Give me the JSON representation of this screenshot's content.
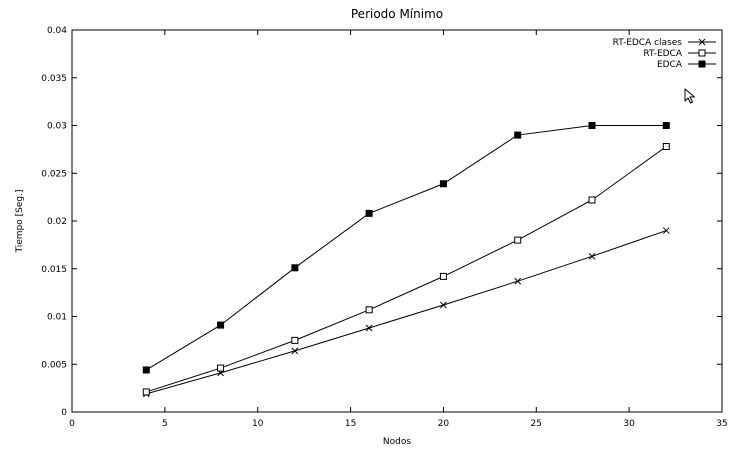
{
  "chart_data": {
    "type": "line",
    "title": "Periodo Mínimo",
    "xlabel": "Nodos",
    "ylabel": "Tiempo [Seg.]",
    "xlim": [
      0,
      35
    ],
    "ylim": [
      0,
      0.04
    ],
    "x_ticks": [
      "0",
      "5",
      "10",
      "15",
      "20",
      "25",
      "30",
      "35"
    ],
    "y_ticks": [
      "0",
      "0.005",
      "0.01",
      "0.015",
      "0.02",
      "0.025",
      "0.03",
      "0.035",
      "0.04"
    ],
    "x_tick_values": [
      0,
      5,
      10,
      15,
      20,
      25,
      30,
      35
    ],
    "y_tick_values": [
      0,
      0.005,
      0.01,
      0.015,
      0.02,
      0.025,
      0.03,
      0.035,
      0.04
    ],
    "grid": false,
    "legend_position": "top-right",
    "x": [
      4,
      8,
      12,
      16,
      20,
      24,
      28,
      32
    ],
    "series": [
      {
        "name": "RT-EDCA clases",
        "marker": "x",
        "values": [
          0.0019,
          0.0041,
          0.0064,
          0.0088,
          0.0112,
          0.0137,
          0.0163,
          0.019
        ]
      },
      {
        "name": "RT-EDCA",
        "marker": "open-square",
        "values": [
          0.0021,
          0.0046,
          0.0075,
          0.0107,
          0.0142,
          0.018,
          0.0222,
          0.0278
        ]
      },
      {
        "name": "EDCA",
        "marker": "filled-square",
        "values": [
          0.0044,
          0.0091,
          0.0151,
          0.0208,
          0.0239,
          0.029,
          0.03,
          0.03
        ]
      }
    ]
  },
  "overlay": {
    "cursor_icon": "mouse-pointer-icon"
  }
}
